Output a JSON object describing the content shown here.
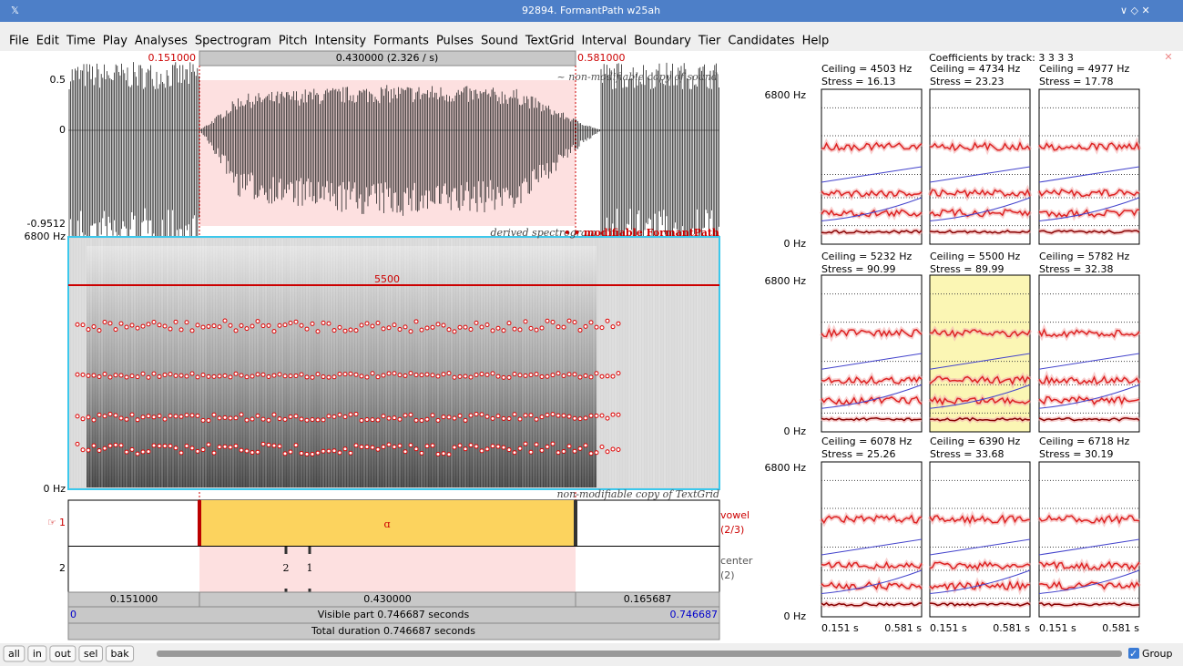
{
  "window": {
    "title": "92894. FormantPath w25ah",
    "menu": [
      "File",
      "Edit",
      "Time",
      "Play",
      "Analyses",
      "Spectrogram",
      "Pitch",
      "Intensity",
      "Formants",
      "Pulses",
      "Sound",
      "TextGrid",
      "Interval",
      "Boundary",
      "Tier",
      "Candidates",
      "Help"
    ]
  },
  "selection": {
    "start": "0.151000",
    "duration": "0.430000 (2.326 / s)",
    "end": "0.581000"
  },
  "sound": {
    "ymax": "0.5",
    "zero": "0",
    "ymin": "-0.9512",
    "note": "~ non-modifiable copy of sound"
  },
  "spectrogram": {
    "fmax": "6800 Hz",
    "fmin": "0 Hz",
    "legend_derived": "derived spectrogram",
    "legend_formant": "• • modifiable FormantPath",
    "ceiling_line": "5500"
  },
  "textgrid": {
    "note": "non-modifiable copy of TextGrid",
    "tiers": [
      {
        "number": "1",
        "label": "ɑ",
        "name": "vowel",
        "count": "(2/3)"
      },
      {
        "number": "2",
        "points": [
          "2",
          "1"
        ],
        "name": "center",
        "count": "(2)"
      }
    ]
  },
  "time_bars": {
    "segments": [
      "0.151000",
      "0.430000",
      "0.165687"
    ],
    "visible_start": "0",
    "visible": "Visible part 0.746687 seconds",
    "visible_end": "0.746687",
    "total": "Total duration 0.746687 seconds"
  },
  "candidates": {
    "title": "Coefficients by track: 3 3 3 3",
    "y_top": "6800 Hz",
    "y_bottom": "0 Hz",
    "x_start": "0.151 s",
    "x_end": "0.581 s",
    "items": [
      {
        "ceiling": "Ceiling = 4503 Hz",
        "stress": "Stress = 16.13"
      },
      {
        "ceiling": "Ceiling = 4734 Hz",
        "stress": "Stress = 23.23"
      },
      {
        "ceiling": "Ceiling = 4977 Hz",
        "stress": "Stress = 17.78"
      },
      {
        "ceiling": "Ceiling = 5232 Hz",
        "stress": "Stress = 90.99"
      },
      {
        "ceiling": "Ceiling = 5500 Hz",
        "stress": "Stress = 89.99"
      },
      {
        "ceiling": "Ceiling = 5782 Hz",
        "stress": "Stress = 32.38"
      },
      {
        "ceiling": "Ceiling = 6078 Hz",
        "stress": "Stress = 25.26"
      },
      {
        "ceiling": "Ceiling = 6390 Hz",
        "stress": "Stress = 33.68"
      },
      {
        "ceiling": "Ceiling = 6718 Hz",
        "stress": "Stress = 30.19"
      }
    ]
  },
  "toolbar": {
    "buttons": [
      "all",
      "in",
      "out",
      "sel",
      "bak"
    ],
    "group": "Group"
  }
}
